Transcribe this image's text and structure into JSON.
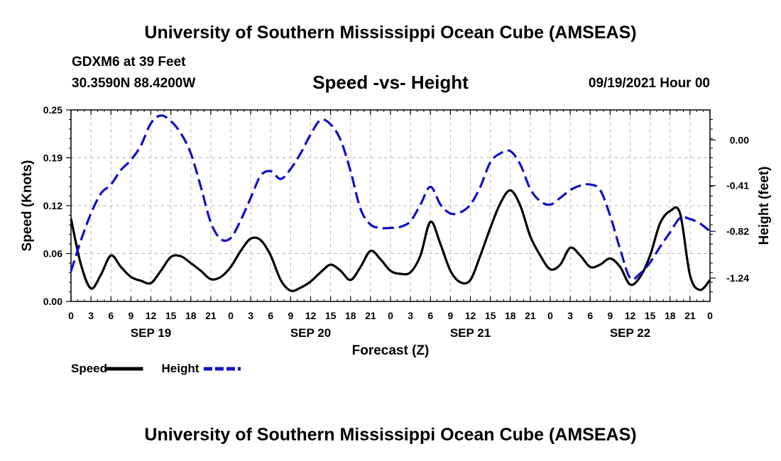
{
  "header": {
    "title_top": "University of Southern Mississippi Ocean Cube (AMSEAS)",
    "title_bottom": "University of Southern Mississippi Ocean Cube (AMSEAS)",
    "station": "GDXM6 at 39 Feet",
    "coords": "30.3590N  88.4200W",
    "chart_title": "Speed -vs- Height",
    "datetime": "09/19/2021 Hour 00"
  },
  "colors": {
    "speed": "#000000",
    "height": "#1010c8",
    "grid": "#bbbbbb"
  },
  "chart_data": {
    "type": "line",
    "title": "Speed -vs- Height",
    "xlabel": "Forecast (Z)",
    "ylabel_left": "Speed (Knots)",
    "ylabel_right": "Height (feet)",
    "xlim_hours": [
      0,
      96
    ],
    "ylim_left": [
      0,
      0.25
    ],
    "ylim_right": [
      -1.45,
      0.27
    ],
    "left_ticks": [
      0,
      0.0625,
      0.125,
      0.1875,
      0.25
    ],
    "left_tick_labels": [
      "0.00",
      "0.06",
      "0.12",
      "0.19",
      "0.25"
    ],
    "right_ticks": [
      0.0,
      -0.41,
      -0.82,
      -1.24
    ],
    "right_tick_labels": [
      "0.00",
      "-0.41",
      "-0.82",
      "-1.24"
    ],
    "x_ticks": [
      0,
      3,
      6,
      9,
      12,
      15,
      18,
      21,
      24,
      27,
      30,
      33,
      36,
      39,
      42,
      45,
      48,
      51,
      54,
      57,
      60,
      63,
      66,
      69,
      72,
      75,
      78,
      81,
      84,
      87,
      90,
      93,
      96
    ],
    "x_tick_labels": [
      "0",
      "3",
      "6",
      "9",
      "12",
      "15",
      "18",
      "21",
      "0",
      "3",
      "6",
      "9",
      "12",
      "15",
      "18",
      "21",
      "0",
      "3",
      "6",
      "9",
      "12",
      "15",
      "18",
      "21",
      "0",
      "3",
      "6",
      "9",
      "12",
      "15",
      "18",
      "21",
      "0"
    ],
    "day_labels": [
      {
        "hour": 12,
        "label": "SEP 19"
      },
      {
        "hour": 36,
        "label": "SEP 20"
      },
      {
        "hour": 60,
        "label": "SEP 21"
      },
      {
        "hour": 84,
        "label": "SEP 22"
      }
    ],
    "legend": [
      {
        "name": "Speed",
        "style": "solid"
      },
      {
        "name": "Height",
        "style": "dashed"
      }
    ],
    "series": [
      {
        "name": "Speed",
        "axis": "left",
        "x": [
          0,
          1.5,
          3,
          4.5,
          6,
          7.5,
          9,
          10.5,
          12,
          13.5,
          15,
          16.5,
          18,
          19.5,
          21,
          22.5,
          24,
          25.5,
          27,
          28.5,
          30,
          31.5,
          33,
          34.5,
          36,
          37.5,
          39,
          40.5,
          42,
          43.5,
          45,
          46.5,
          48,
          49.5,
          51,
          52.5,
          54,
          55.5,
          57,
          58.5,
          60,
          61.5,
          63,
          64.5,
          66,
          67.5,
          69,
          70.5,
          72,
          73.5,
          75,
          76.5,
          78,
          79.5,
          81,
          82.5,
          84,
          85.5,
          87,
          88.5,
          90,
          91.5,
          93,
          94.5,
          96
        ],
        "values": [
          0.108,
          0.048,
          0.017,
          0.035,
          0.06,
          0.045,
          0.032,
          0.027,
          0.024,
          0.04,
          0.058,
          0.059,
          0.05,
          0.04,
          0.029,
          0.032,
          0.045,
          0.066,
          0.082,
          0.08,
          0.06,
          0.028,
          0.014,
          0.018,
          0.026,
          0.038,
          0.048,
          0.04,
          0.028,
          0.045,
          0.066,
          0.055,
          0.04,
          0.036,
          0.038,
          0.06,
          0.104,
          0.075,
          0.04,
          0.025,
          0.028,
          0.06,
          0.096,
          0.128,
          0.145,
          0.125,
          0.085,
          0.06,
          0.042,
          0.048,
          0.07,
          0.06,
          0.045,
          0.048,
          0.056,
          0.045,
          0.022,
          0.032,
          0.06,
          0.102,
          0.118,
          0.115,
          0.034,
          0.015,
          0.028
        ]
      },
      {
        "name": "Height",
        "axis": "right",
        "x": [
          0,
          1.5,
          3,
          4.5,
          6,
          7.5,
          9,
          10.5,
          12,
          13.5,
          15,
          16.5,
          18,
          19.5,
          21,
          22.5,
          24,
          25.5,
          27,
          28.5,
          30,
          31.5,
          33,
          34.5,
          36,
          37.5,
          39,
          40.5,
          42,
          43.5,
          45,
          46.5,
          48,
          49.5,
          51,
          52.5,
          54,
          55.5,
          57,
          58.5,
          60,
          61.5,
          63,
          64.5,
          66,
          67.5,
          69,
          70.5,
          72,
          73.5,
          75,
          76.5,
          78,
          79.5,
          81,
          82.5,
          84,
          85.5,
          87,
          88.5,
          90,
          91.5,
          93,
          94.5,
          96
        ],
        "values": [
          -1.18,
          -0.9,
          -0.66,
          -0.48,
          -0.4,
          -0.27,
          -0.18,
          -0.05,
          0.15,
          0.22,
          0.17,
          0.06,
          -0.12,
          -0.42,
          -0.74,
          -0.89,
          -0.88,
          -0.72,
          -0.52,
          -0.32,
          -0.28,
          -0.35,
          -0.26,
          -0.12,
          0.05,
          0.18,
          0.14,
          0.0,
          -0.28,
          -0.62,
          -0.76,
          -0.79,
          -0.79,
          -0.78,
          -0.73,
          -0.58,
          -0.42,
          -0.58,
          -0.66,
          -0.65,
          -0.58,
          -0.42,
          -0.2,
          -0.12,
          -0.1,
          -0.22,
          -0.44,
          -0.55,
          -0.58,
          -0.52,
          -0.45,
          -0.41,
          -0.4,
          -0.45,
          -0.68,
          -0.98,
          -1.24,
          -1.2,
          -1.1,
          -0.96,
          -0.83,
          -0.7,
          -0.71,
          -0.75,
          -0.82
        ]
      }
    ]
  }
}
